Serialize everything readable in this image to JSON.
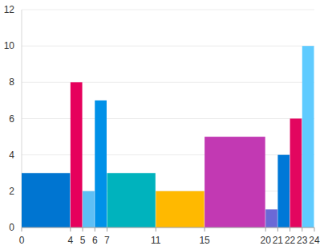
{
  "chart_data": {
    "type": "histogram",
    "bins": [
      0,
      4,
      5,
      6,
      7,
      11,
      15,
      20,
      21,
      22,
      23,
      24
    ],
    "values": [
      3,
      8,
      2,
      7,
      3,
      2,
      5,
      1,
      4,
      6,
      10
    ],
    "colors": [
      "#0075d1",
      "#e6005c",
      "#5ebff5",
      "#0091e8",
      "#00b3bd",
      "#ffb900",
      "#c239b3",
      "#6b69d6",
      "#0078d7",
      "#e3065f",
      "#5fcbff"
    ],
    "xlim": [
      0,
      24
    ],
    "xticks": [
      0,
      4,
      5,
      6,
      7,
      11,
      15,
      20,
      21,
      22,
      23,
      24
    ],
    "ylim": [
      0,
      12
    ],
    "yticks": [
      0,
      2,
      4,
      6,
      8,
      10,
      12
    ],
    "grid": true
  }
}
